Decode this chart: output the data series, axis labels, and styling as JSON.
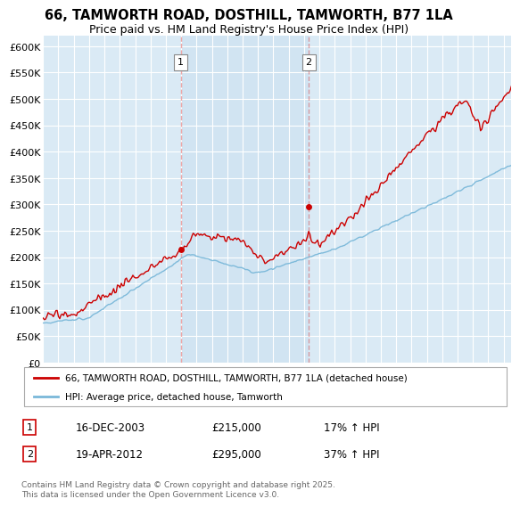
{
  "title": "66, TAMWORTH ROAD, DOSTHILL, TAMWORTH, B77 1LA",
  "subtitle": "Price paid vs. HM Land Registry's House Price Index (HPI)",
  "ylim": [
    0,
    620000
  ],
  "yticks": [
    0,
    50000,
    100000,
    150000,
    200000,
    250000,
    300000,
    350000,
    400000,
    450000,
    500000,
    550000,
    600000
  ],
  "ytick_labels": [
    "£0",
    "£50K",
    "£100K",
    "£150K",
    "£200K",
    "£250K",
    "£300K",
    "£350K",
    "£400K",
    "£450K",
    "£500K",
    "£550K",
    "£600K"
  ],
  "xlim_start": 1995,
  "xlim_end": 2025.5,
  "sale1_x": 2003.96,
  "sale1_y": 215000,
  "sale1_label": "1",
  "sale1_date": "16-DEC-2003",
  "sale1_price": "£215,000",
  "sale1_hpi": "17% ↑ HPI",
  "sale2_x": 2012.3,
  "sale2_y": 295000,
  "sale2_label": "2",
  "sale2_date": "19-APR-2012",
  "sale2_price": "£295,000",
  "sale2_hpi": "37% ↑ HPI",
  "hpi_color": "#7ab8d9",
  "sale_color": "#cc0000",
  "vline_color": "#cc0000",
  "vline_alpha": 0.35,
  "background_plot": "#daeaf5",
  "highlight_color": "#cce0f0",
  "legend_sale_label": "66, TAMWORTH ROAD, DOSTHILL, TAMWORTH, B77 1LA (detached house)",
  "legend_hpi_label": "HPI: Average price, detached house, Tamworth",
  "footer": "Contains HM Land Registry data © Crown copyright and database right 2025.\nThis data is licensed under the Open Government Licence v3.0."
}
